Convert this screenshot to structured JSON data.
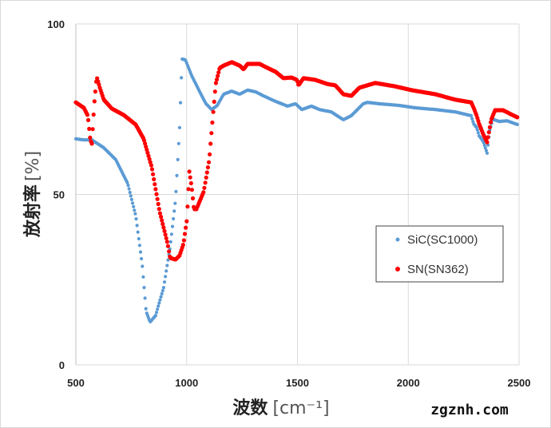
{
  "chart_data": {
    "type": "scatter",
    "title": "",
    "xlabel": "波数",
    "xlabel_unit": "[cm⁻¹]",
    "ylabel": "放射率",
    "ylabel_unit": "[%]",
    "xlim": [
      500,
      2500
    ],
    "ylim": [
      0,
      100
    ],
    "xticks": [
      "500",
      "1000",
      "1500",
      "2000",
      "2500"
    ],
    "yticks": [
      "0",
      "50",
      "100"
    ],
    "grid": true,
    "legend_position": "right",
    "series": [
      {
        "name": "SiC(SC1000)",
        "color": "#5B9BD5",
        "points": [
          [
            500,
            66.3
          ],
          [
            536,
            66.0
          ],
          [
            572,
            66.0
          ],
          [
            626,
            63.7
          ],
          [
            680,
            60.2
          ],
          [
            734,
            53.2
          ],
          [
            770,
            43.8
          ],
          [
            799,
            29.7
          ],
          [
            817,
            15.7
          ],
          [
            835,
            12.6
          ],
          [
            860,
            14.5
          ],
          [
            896,
            22.7
          ],
          [
            925,
            34.4
          ],
          [
            950,
            48.5
          ],
          [
            968,
            69.6
          ],
          [
            979,
            89.7
          ],
          [
            994,
            89.5
          ],
          [
            1023,
            84.8
          ],
          [
            1059,
            80.1
          ],
          [
            1087,
            76.6
          ],
          [
            1113,
            74.9
          ],
          [
            1138,
            76.1
          ],
          [
            1167,
            79.4
          ],
          [
            1203,
            80.3
          ],
          [
            1239,
            79.4
          ],
          [
            1275,
            80.6
          ],
          [
            1311,
            80.1
          ],
          [
            1347,
            78.9
          ],
          [
            1401,
            77.3
          ],
          [
            1455,
            75.9
          ],
          [
            1491,
            76.6
          ],
          [
            1520,
            74.9
          ],
          [
            1563,
            75.9
          ],
          [
            1599,
            74.9
          ],
          [
            1653,
            74.2
          ],
          [
            1707,
            71.9
          ],
          [
            1743,
            73.1
          ],
          [
            1797,
            76.6
          ],
          [
            1815,
            77.0
          ],
          [
            1869,
            76.6
          ],
          [
            1959,
            76.1
          ],
          [
            2032,
            75.4
          ],
          [
            2122,
            74.9
          ],
          [
            2212,
            74.2
          ],
          [
            2284,
            73.1
          ],
          [
            2295,
            70.7
          ],
          [
            2309,
            69.6
          ],
          [
            2320,
            67.2
          ],
          [
            2338,
            65.6
          ],
          [
            2356,
            62.1
          ],
          [
            2367,
            68.6
          ],
          [
            2381,
            72.1
          ],
          [
            2410,
            71.4
          ],
          [
            2446,
            71.6
          ],
          [
            2493,
            70.5
          ]
        ]
      },
      {
        "name": "SN(SN362)",
        "color": "#FF0000",
        "points": [
          [
            500,
            77.0
          ],
          [
            536,
            75.4
          ],
          [
            554,
            73.1
          ],
          [
            565,
            66.0
          ],
          [
            572,
            64.9
          ],
          [
            583,
            76.6
          ],
          [
            594,
            84.5
          ],
          [
            608,
            81.3
          ],
          [
            626,
            77.8
          ],
          [
            662,
            75.2
          ],
          [
            716,
            73.3
          ],
          [
            770,
            70.5
          ],
          [
            806,
            66.3
          ],
          [
            842,
            58.1
          ],
          [
            878,
            45.0
          ],
          [
            914,
            35.6
          ],
          [
            925,
            31.4
          ],
          [
            950,
            30.9
          ],
          [
            968,
            32.1
          ],
          [
            986,
            35.6
          ],
          [
            1001,
            42.6
          ],
          [
            1012,
            56.7
          ],
          [
            1023,
            52.0
          ],
          [
            1033,
            45.7
          ],
          [
            1044,
            45.7
          ],
          [
            1077,
            50.8
          ],
          [
            1102,
            60.2
          ],
          [
            1120,
            74.2
          ],
          [
            1131,
            82.4
          ],
          [
            1149,
            87.1
          ],
          [
            1167,
            87.8
          ],
          [
            1203,
            88.8
          ],
          [
            1239,
            87.8
          ],
          [
            1257,
            86.7
          ],
          [
            1275,
            88.3
          ],
          [
            1329,
            88.3
          ],
          [
            1365,
            87.1
          ],
          [
            1401,
            86.0
          ],
          [
            1437,
            84.1
          ],
          [
            1473,
            84.3
          ],
          [
            1498,
            83.6
          ],
          [
            1505,
            82.0
          ],
          [
            1527,
            84.1
          ],
          [
            1581,
            83.6
          ],
          [
            1635,
            82.4
          ],
          [
            1671,
            82.0
          ],
          [
            1707,
            79.4
          ],
          [
            1743,
            78.9
          ],
          [
            1779,
            81.3
          ],
          [
            1851,
            82.7
          ],
          [
            1941,
            81.7
          ],
          [
            2014,
            80.6
          ],
          [
            2122,
            79.4
          ],
          [
            2212,
            77.8
          ],
          [
            2284,
            77.0
          ],
          [
            2295,
            75.4
          ],
          [
            2309,
            73.1
          ],
          [
            2320,
            70.7
          ],
          [
            2338,
            67.7
          ],
          [
            2356,
            65.3
          ],
          [
            2374,
            71.9
          ],
          [
            2392,
            74.7
          ],
          [
            2428,
            74.7
          ],
          [
            2464,
            73.5
          ],
          [
            2493,
            72.6
          ]
        ]
      }
    ]
  },
  "watermark": "zgznh.com"
}
